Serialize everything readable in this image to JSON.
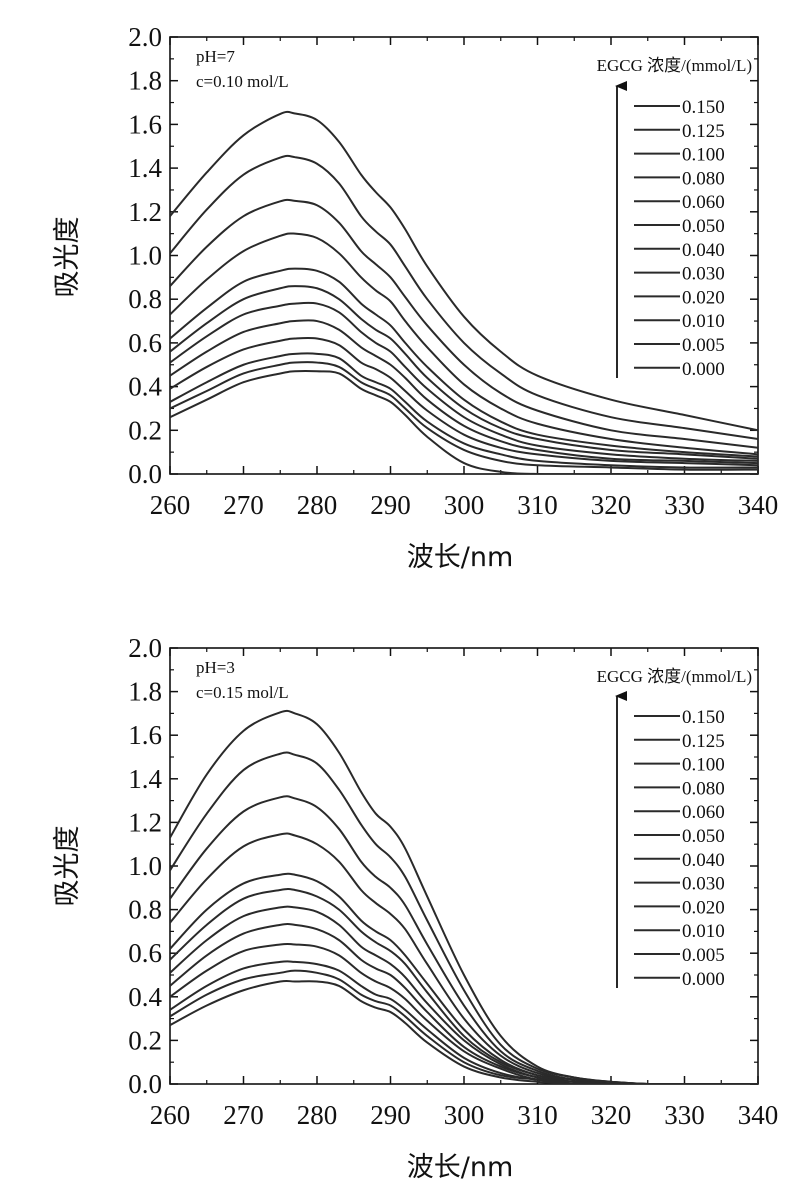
{
  "chart_data": [
    {
      "type": "line",
      "xlabel": "波长/nm",
      "ylabel": "吸光度",
      "xlim": [
        260,
        340
      ],
      "ylim": [
        0.0,
        2.0
      ],
      "xticks": [
        "260",
        "270",
        "280",
        "290",
        "300",
        "310",
        "320",
        "330",
        "340"
      ],
      "yticks": [
        "0.0",
        "0.2",
        "0.4",
        "0.6",
        "0.8",
        "1.0",
        "1.2",
        "1.4",
        "1.6",
        "1.8",
        "2.0"
      ],
      "annotations": [
        "pH=7",
        "c=0.10 mol/L"
      ],
      "legend_title": "EGCG 浓度/(mmol/L)",
      "legend_placement": "top-right",
      "legend_arrow": "upward",
      "grid": false,
      "x": [
        260,
        265,
        270,
        275,
        277,
        280,
        283,
        286,
        288,
        290,
        292,
        295,
        300,
        305,
        310,
        320,
        330,
        340
      ],
      "series": [
        {
          "name": "0.150",
          "values": [
            1.18,
            1.38,
            1.55,
            1.648,
            1.65,
            1.62,
            1.52,
            1.37,
            1.29,
            1.22,
            1.12,
            0.95,
            0.72,
            0.56,
            0.45,
            0.34,
            0.27,
            0.2
          ]
        },
        {
          "name": "0.125",
          "values": [
            1.01,
            1.21,
            1.37,
            1.448,
            1.45,
            1.42,
            1.33,
            1.18,
            1.11,
            1.05,
            0.95,
            0.8,
            0.6,
            0.46,
            0.36,
            0.26,
            0.21,
            0.16
          ]
        },
        {
          "name": "0.100",
          "values": [
            0.86,
            1.04,
            1.18,
            1.248,
            1.25,
            1.23,
            1.15,
            1.02,
            0.96,
            0.9,
            0.81,
            0.68,
            0.5,
            0.37,
            0.29,
            0.2,
            0.16,
            0.12
          ]
        },
        {
          "name": "0.080",
          "values": [
            0.73,
            0.89,
            1.02,
            1.09,
            1.1,
            1.08,
            1.01,
            0.9,
            0.84,
            0.79,
            0.7,
            0.58,
            0.41,
            0.3,
            0.23,
            0.16,
            0.12,
            0.09
          ]
        },
        {
          "name": "0.060",
          "values": [
            0.62,
            0.76,
            0.88,
            0.93,
            0.94,
            0.93,
            0.88,
            0.78,
            0.73,
            0.68,
            0.6,
            0.49,
            0.34,
            0.24,
            0.18,
            0.13,
            0.1,
            0.08
          ]
        },
        {
          "name": "0.050",
          "values": [
            0.56,
            0.69,
            0.8,
            0.85,
            0.86,
            0.85,
            0.8,
            0.71,
            0.66,
            0.62,
            0.55,
            0.44,
            0.3,
            0.21,
            0.16,
            0.11,
            0.09,
            0.07
          ]
        },
        {
          "name": "0.040",
          "values": [
            0.51,
            0.63,
            0.73,
            0.77,
            0.78,
            0.78,
            0.74,
            0.65,
            0.6,
            0.56,
            0.49,
            0.39,
            0.26,
            0.18,
            0.13,
            0.09,
            0.07,
            0.06
          ]
        },
        {
          "name": "0.030",
          "values": [
            0.45,
            0.56,
            0.65,
            0.69,
            0.7,
            0.7,
            0.66,
            0.58,
            0.54,
            0.5,
            0.44,
            0.34,
            0.22,
            0.15,
            0.11,
            0.07,
            0.06,
            0.05
          ]
        },
        {
          "name": "0.020",
          "values": [
            0.39,
            0.49,
            0.57,
            0.61,
            0.62,
            0.62,
            0.59,
            0.51,
            0.48,
            0.44,
            0.38,
            0.29,
            0.18,
            0.12,
            0.09,
            0.06,
            0.05,
            0.04
          ]
        },
        {
          "name": "0.010",
          "values": [
            0.33,
            0.42,
            0.5,
            0.54,
            0.55,
            0.55,
            0.53,
            0.45,
            0.42,
            0.39,
            0.33,
            0.24,
            0.14,
            0.09,
            0.06,
            0.04,
            0.03,
            0.03
          ]
        },
        {
          "name": "0.005",
          "values": [
            0.3,
            0.38,
            0.46,
            0.5,
            0.51,
            0.51,
            0.49,
            0.42,
            0.39,
            0.36,
            0.3,
            0.21,
            0.11,
            0.06,
            0.04,
            0.03,
            0.02,
            0.02
          ]
        },
        {
          "name": "0.000",
          "values": [
            0.26,
            0.34,
            0.42,
            0.46,
            0.47,
            0.47,
            0.46,
            0.39,
            0.36,
            0.33,
            0.27,
            0.17,
            0.05,
            0.01,
            0.0,
            0.0,
            0.0,
            0.0
          ]
        }
      ]
    },
    {
      "type": "line",
      "xlabel": "波长/nm",
      "ylabel": "吸光度",
      "xlim": [
        260,
        340
      ],
      "ylim": [
        0.0,
        2.0
      ],
      "xticks": [
        "260",
        "270",
        "280",
        "290",
        "300",
        "310",
        "320",
        "330",
        "340"
      ],
      "yticks": [
        "0.0",
        "0.2",
        "0.4",
        "0.6",
        "0.8",
        "1.0",
        "1.2",
        "1.4",
        "1.6",
        "1.8",
        "2.0"
      ],
      "annotations": [
        "pH=3",
        "c=0.15 mol/L"
      ],
      "legend_title": "EGCG 浓度/(mmol/L)",
      "legend_placement": "top-right",
      "legend_arrow": "upward",
      "grid": false,
      "x": [
        260,
        265,
        270,
        275,
        277,
        280,
        283,
        286,
        288,
        290,
        292,
        295,
        300,
        305,
        310,
        315,
        320,
        325,
        330,
        340
      ],
      "series": [
        {
          "name": "0.150",
          "values": [
            1.13,
            1.42,
            1.62,
            1.705,
            1.7,
            1.65,
            1.52,
            1.34,
            1.24,
            1.18,
            1.08,
            0.86,
            0.5,
            0.22,
            0.08,
            0.03,
            0.01,
            0.0,
            0.0,
            0.0
          ]
        },
        {
          "name": "0.125",
          "values": [
            0.98,
            1.24,
            1.44,
            1.515,
            1.51,
            1.47,
            1.35,
            1.19,
            1.1,
            1.04,
            0.95,
            0.75,
            0.43,
            0.18,
            0.07,
            0.03,
            0.01,
            0.0,
            0.0,
            0.0
          ]
        },
        {
          "name": "0.100",
          "values": [
            0.85,
            1.08,
            1.25,
            1.315,
            1.31,
            1.27,
            1.17,
            1.02,
            0.95,
            0.9,
            0.82,
            0.64,
            0.36,
            0.15,
            0.06,
            0.02,
            0.01,
            0.0,
            0.0,
            0.0
          ]
        },
        {
          "name": "0.080",
          "values": [
            0.74,
            0.94,
            1.09,
            1.145,
            1.14,
            1.1,
            1.02,
            0.89,
            0.83,
            0.78,
            0.71,
            0.55,
            0.3,
            0.13,
            0.05,
            0.02,
            0.01,
            0.0,
            0.0,
            0.0
          ]
        },
        {
          "name": "0.060",
          "values": [
            0.62,
            0.8,
            0.92,
            0.96,
            0.96,
            0.93,
            0.86,
            0.75,
            0.7,
            0.66,
            0.59,
            0.46,
            0.25,
            0.11,
            0.04,
            0.02,
            0.0,
            0.0,
            0.0,
            0.0
          ]
        },
        {
          "name": "0.050",
          "values": [
            0.57,
            0.73,
            0.85,
            0.89,
            0.89,
            0.86,
            0.8,
            0.7,
            0.65,
            0.61,
            0.55,
            0.42,
            0.22,
            0.1,
            0.04,
            0.01,
            0.0,
            0.0,
            0.0,
            0.0
          ]
        },
        {
          "name": "0.040",
          "values": [
            0.51,
            0.66,
            0.77,
            0.81,
            0.81,
            0.79,
            0.73,
            0.63,
            0.59,
            0.55,
            0.49,
            0.37,
            0.2,
            0.09,
            0.03,
            0.01,
            0.0,
            0.0,
            0.0,
            0.0
          ]
        },
        {
          "name": "0.030",
          "values": [
            0.45,
            0.59,
            0.69,
            0.73,
            0.73,
            0.71,
            0.66,
            0.57,
            0.53,
            0.5,
            0.44,
            0.33,
            0.17,
            0.08,
            0.03,
            0.01,
            0.0,
            0.0,
            0.0,
            0.0
          ]
        },
        {
          "name": "0.020",
          "values": [
            0.4,
            0.52,
            0.61,
            0.64,
            0.64,
            0.63,
            0.59,
            0.51,
            0.47,
            0.44,
            0.39,
            0.29,
            0.15,
            0.07,
            0.02,
            0.01,
            0.0,
            0.0,
            0.0,
            0.0
          ]
        },
        {
          "name": "0.010",
          "values": [
            0.34,
            0.45,
            0.53,
            0.56,
            0.56,
            0.55,
            0.52,
            0.45,
            0.41,
            0.39,
            0.34,
            0.25,
            0.12,
            0.05,
            0.02,
            0.01,
            0.0,
            0.0,
            0.0,
            0.0
          ]
        },
        {
          "name": "0.005",
          "values": [
            0.31,
            0.41,
            0.48,
            0.51,
            0.52,
            0.51,
            0.48,
            0.41,
            0.38,
            0.36,
            0.31,
            0.22,
            0.1,
            0.04,
            0.02,
            0.0,
            0.0,
            0.0,
            0.0,
            0.0
          ]
        },
        {
          "name": "0.000",
          "values": [
            0.27,
            0.36,
            0.43,
            0.47,
            0.47,
            0.47,
            0.45,
            0.38,
            0.35,
            0.33,
            0.28,
            0.19,
            0.08,
            0.03,
            0.01,
            0.0,
            0.0,
            0.0,
            0.0,
            0.0
          ]
        }
      ]
    }
  ]
}
